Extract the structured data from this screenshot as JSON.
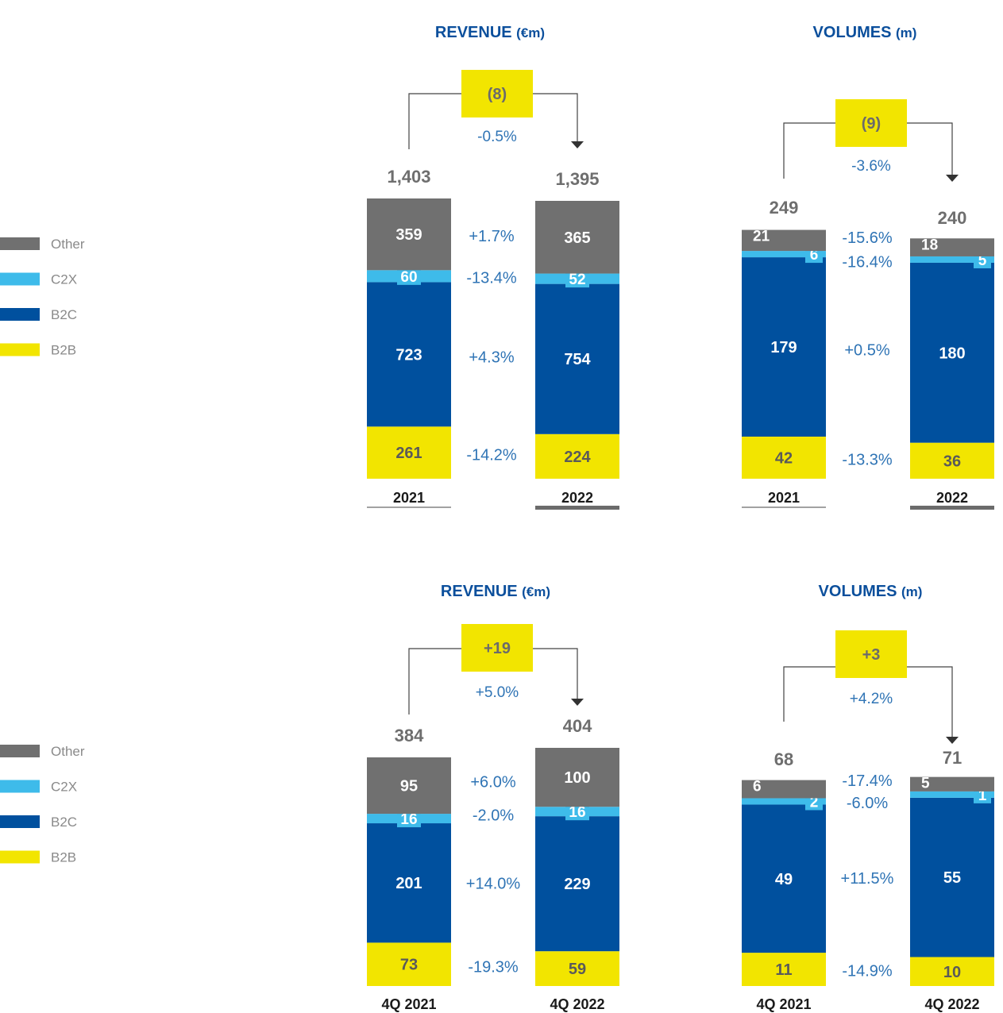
{
  "colors": {
    "Other": "#707070",
    "C2X": "#3ebbea",
    "B2C": "#00509e",
    "B2B": "#f2e500",
    "title": "#0b4f9c",
    "delta_text": "#2f74b5",
    "total_text": "#6e6e6e",
    "axis": "#555555"
  },
  "legend": {
    "items": [
      {
        "name": "Other",
        "color": "#707070"
      },
      {
        "name": "C2X",
        "color": "#3ebbea"
      },
      {
        "name": "B2C",
        "color": "#00509e"
      },
      {
        "name": "B2B",
        "color": "#f2e500"
      }
    ]
  },
  "chart_data": [
    {
      "type": "bar",
      "stacked": true,
      "title": "REVENUE",
      "unit": "(€m)",
      "categories": [
        "2021",
        "2022"
      ],
      "totals": [
        "1,403",
        "1,395"
      ],
      "change": {
        "value": "(8)",
        "pct": "-0.5%"
      },
      "series": [
        {
          "name": "B2B",
          "values": [
            261,
            224
          ],
          "change": "-14.2%"
        },
        {
          "name": "B2C",
          "values": [
            723,
            754
          ],
          "change": "+4.3%"
        },
        {
          "name": "C2X",
          "values": [
            60,
            52
          ],
          "change": "-13.4%"
        },
        {
          "name": "Other",
          "values": [
            359,
            365
          ],
          "change": "+1.7%"
        }
      ]
    },
    {
      "type": "bar",
      "stacked": true,
      "title": "VOLUMES",
      "unit": "(m)",
      "categories": [
        "2021",
        "2022"
      ],
      "totals": [
        "249",
        "240"
      ],
      "change": {
        "value": "(9)",
        "pct": "-3.6%"
      },
      "series": [
        {
          "name": "B2B",
          "values": [
            42,
            36
          ],
          "change": "-13.3%"
        },
        {
          "name": "B2C",
          "values": [
            179,
            180
          ],
          "change": "+0.5%"
        },
        {
          "name": "C2X",
          "values": [
            6,
            5
          ],
          "change": "-16.4%"
        },
        {
          "name": "Other",
          "values": [
            21,
            18
          ],
          "change": "-15.6%"
        }
      ]
    },
    {
      "type": "bar",
      "stacked": true,
      "title": "REVENUE",
      "unit": "(€m)",
      "categories": [
        "4Q 2021",
        "4Q 2022"
      ],
      "totals": [
        "384",
        "404"
      ],
      "change": {
        "value": "+19",
        "pct": "+5.0%"
      },
      "series": [
        {
          "name": "B2B",
          "values": [
            73,
            59
          ],
          "change": "-19.3%"
        },
        {
          "name": "B2C",
          "values": [
            201,
            229
          ],
          "change": "+14.0%"
        },
        {
          "name": "C2X",
          "values": [
            16,
            16
          ],
          "change": "-2.0%"
        },
        {
          "name": "Other",
          "values": [
            95,
            100
          ],
          "change": "+6.0%"
        }
      ]
    },
    {
      "type": "bar",
      "stacked": true,
      "title": "VOLUMES",
      "unit": "(m)",
      "categories": [
        "4Q 2021",
        "4Q 2022"
      ],
      "totals": [
        "68",
        "71"
      ],
      "change": {
        "value": "+3",
        "pct": "+4.2%"
      },
      "series": [
        {
          "name": "B2B",
          "values": [
            11,
            10
          ],
          "change": "-14.9%"
        },
        {
          "name": "B2C",
          "values": [
            49,
            55
          ],
          "change": "+11.5%"
        },
        {
          "name": "C2X",
          "values": [
            2,
            1
          ],
          "change": "-6.0%"
        },
        {
          "name": "Other",
          "values": [
            6,
            5
          ],
          "change": "-17.4%"
        }
      ]
    }
  ]
}
